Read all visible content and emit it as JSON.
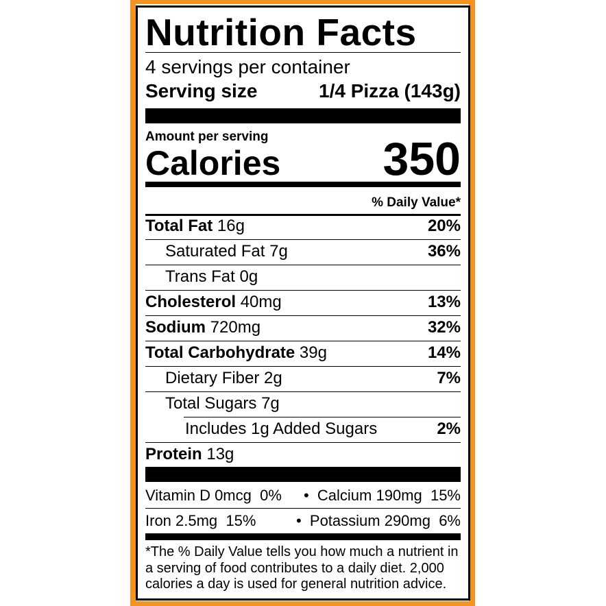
{
  "title": "Nutrition Facts",
  "servings_per_container": "4 servings per container",
  "serving_size_label": "Serving size",
  "serving_size_value": "1/4 Pizza (143g)",
  "amount_per_serving": "Amount per serving",
  "calories_label": "Calories",
  "calories_value": "350",
  "daily_value_header": "% Daily Value*",
  "nutrients": [
    {
      "name": "Total Fat",
      "amount": "16g",
      "dv": "20%",
      "bold": true,
      "indent": 0
    },
    {
      "name": "Saturated Fat",
      "amount": "7g",
      "dv": "36%",
      "bold": false,
      "indent": 1
    },
    {
      "name": "Trans Fat",
      "amount": "0g",
      "dv": "",
      "bold": false,
      "indent": 1
    },
    {
      "name": "Cholesterol",
      "amount": "40mg",
      "dv": "13%",
      "bold": true,
      "indent": 0
    },
    {
      "name": "Sodium",
      "amount": "720mg",
      "dv": "32%",
      "bold": true,
      "indent": 0
    },
    {
      "name": "Total Carbohydrate",
      "amount": "39g",
      "dv": "14%",
      "bold": true,
      "indent": 0
    },
    {
      "name": "Dietary Fiber",
      "amount": "2g",
      "dv": "7%",
      "bold": false,
      "indent": 1
    },
    {
      "name": "Total Sugars",
      "amount": "7g",
      "dv": "",
      "bold": false,
      "indent": 1
    },
    {
      "name": "Includes 1g Added Sugars",
      "amount": "",
      "dv": "2%",
      "bold": false,
      "indent": 2
    },
    {
      "name": "Protein",
      "amount": "13g",
      "dv": "",
      "bold": true,
      "indent": 0
    }
  ],
  "micros": [
    {
      "left": "Vitamin D 0mcg  0%",
      "right": "Calcium 190mg  15%"
    },
    {
      "left": "Iron 2.5mg  15%",
      "right": "Potassium 290mg  6%"
    }
  ],
  "footnote": "*The % Daily Value tells you how much a nutrient in a serving of food contributes to a daily diet. 2,000 calories a day is used for general nutrition advice.",
  "colors": {
    "border_accent": "#f39322",
    "ink": "#000000"
  }
}
